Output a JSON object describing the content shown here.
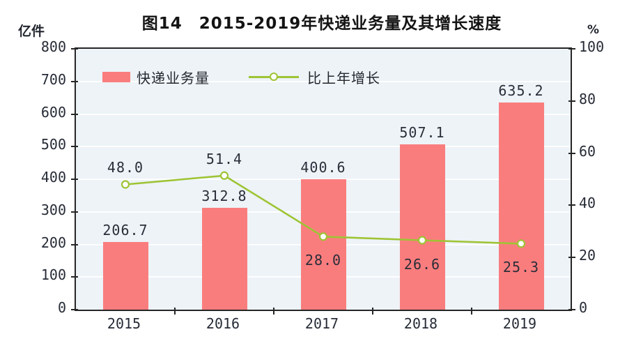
{
  "title": "图14　2015-2019年快递业务量及其增长速度",
  "left_axis_unit": "亿件",
  "right_axis_unit": "%",
  "legend": {
    "bar_label": "快递业务量",
    "line_label": "比上年增长"
  },
  "colors": {
    "bar": "#fa7d7e",
    "line": "#9ec434",
    "marker_fill": "#ffffff",
    "plot_background": "#edf3f7",
    "gridline": "#ffffff",
    "axis": "#262626",
    "text": "#2a2e39"
  },
  "chart_data": {
    "type": "bar",
    "categories": [
      "2015",
      "2016",
      "2017",
      "2018",
      "2019"
    ],
    "title": "图14　2015-2019年快递业务量及其增长速度",
    "series": [
      {
        "name": "快递业务量",
        "type": "bar",
        "axis": "left",
        "values": [
          206.7,
          312.8,
          400.6,
          507.1,
          635.2
        ],
        "labels": [
          "206.7",
          "312.8",
          "400.6",
          "507.1",
          "635.2"
        ]
      },
      {
        "name": "比上年增长",
        "type": "line",
        "axis": "right",
        "values": [
          48.0,
          51.4,
          28.0,
          26.6,
          25.3
        ],
        "labels": [
          "48.0",
          "51.4",
          "28.0",
          "26.6",
          "25.3"
        ],
        "label_position": [
          "above",
          "above",
          "below",
          "below",
          "below"
        ]
      }
    ],
    "left_axis": {
      "unit": "亿件",
      "min": 0,
      "max": 800,
      "step": 100,
      "ticks": [
        "800",
        "700",
        "600",
        "500",
        "400",
        "300",
        "200",
        "100",
        "0"
      ]
    },
    "right_axis": {
      "unit": "%",
      "min": 0,
      "max": 100,
      "step": 20,
      "ticks": [
        "100",
        "80",
        "60",
        "40",
        "20",
        "0"
      ]
    },
    "grid": true,
    "legend_position": "top-left-inside"
  }
}
